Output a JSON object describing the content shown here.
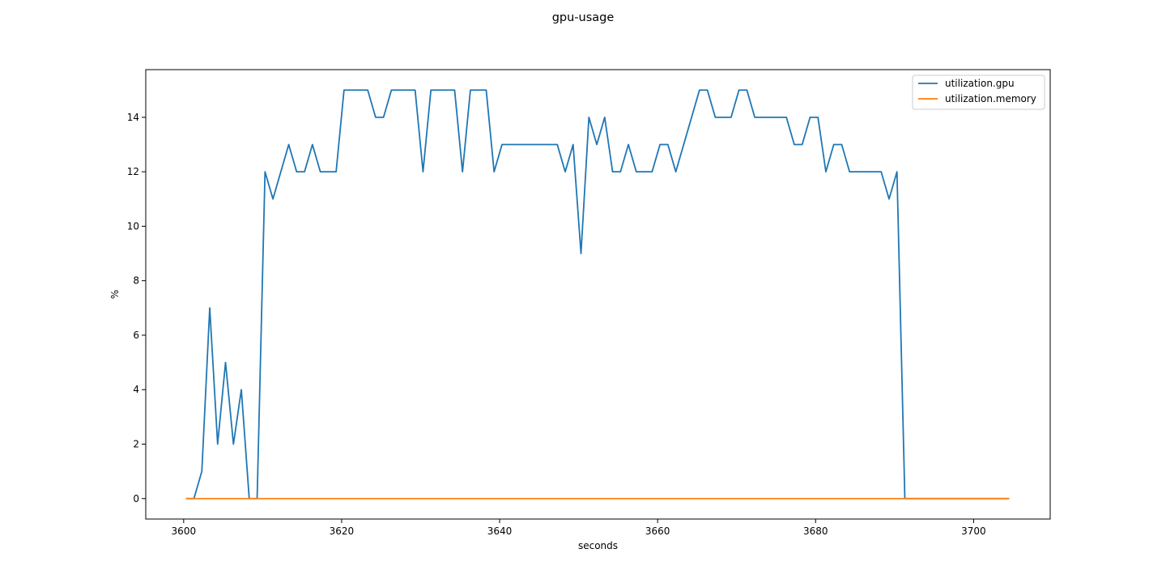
{
  "chart_data": {
    "type": "line",
    "title": "gpu-usage",
    "xlabel": "seconds",
    "ylabel": "%",
    "xlim": [
      3595.2,
      3709.7
    ],
    "ylim": [
      -0.75,
      15.75
    ],
    "xticks": [
      3600,
      3620,
      3640,
      3660,
      3680,
      3700
    ],
    "yticks": [
      0,
      2,
      4,
      6,
      8,
      10,
      12,
      14
    ],
    "grid": false,
    "legend_position": "top-right",
    "series": [
      {
        "name": "utilization.gpu",
        "color": "#1f77b4",
        "x": [
          3600.3,
          3601.3,
          3602.3,
          3603.3,
          3604.3,
          3605.3,
          3606.3,
          3607.3,
          3608.3,
          3609.3,
          3610.3,
          3611.3,
          3612.3,
          3613.3,
          3614.3,
          3615.3,
          3616.3,
          3617.3,
          3618.3,
          3619.3,
          3620.3,
          3621.3,
          3622.3,
          3623.3,
          3624.3,
          3625.3,
          3626.3,
          3627.3,
          3628.3,
          3629.3,
          3630.3,
          3631.3,
          3632.3,
          3633.3,
          3634.3,
          3635.3,
          3636.3,
          3637.3,
          3638.3,
          3639.3,
          3640.3,
          3641.3,
          3642.3,
          3643.3,
          3644.3,
          3645.3,
          3646.3,
          3647.3,
          3648.3,
          3649.3,
          3650.3,
          3651.3,
          3652.3,
          3653.3,
          3654.3,
          3655.3,
          3656.3,
          3657.3,
          3658.3,
          3659.3,
          3660.3,
          3661.3,
          3662.3,
          3663.3,
          3664.3,
          3665.3,
          3666.3,
          3667.3,
          3668.3,
          3669.3,
          3670.3,
          3671.3,
          3672.3,
          3673.3,
          3674.3,
          3675.3,
          3676.3,
          3677.3,
          3678.3,
          3679.3,
          3680.3,
          3681.3,
          3682.3,
          3683.3,
          3684.3,
          3685.3,
          3686.3,
          3687.3,
          3688.3,
          3689.3,
          3690.3,
          3691.3,
          3692.3,
          3693.3,
          3694.3,
          3695.3,
          3696.3,
          3697.3,
          3698.3,
          3699.3,
          3700.3,
          3701.3,
          3702.3,
          3703.3,
          3704.5
        ],
        "values": [
          0,
          0,
          1,
          7,
          2,
          5,
          2,
          4,
          0,
          0,
          12,
          11,
          12,
          13,
          12,
          12,
          13,
          12,
          12,
          12,
          15,
          15,
          15,
          15,
          14,
          14,
          15,
          15,
          15,
          15,
          12,
          15,
          15,
          15,
          15,
          12,
          15,
          15,
          15,
          12,
          13,
          13,
          13,
          13,
          13,
          13,
          13,
          13,
          12,
          13,
          9,
          14,
          13,
          14,
          12,
          12,
          13,
          12,
          12,
          12,
          13,
          13,
          12,
          13,
          14,
          15,
          15,
          14,
          14,
          14,
          15,
          15,
          14,
          14,
          14,
          14,
          14,
          13,
          13,
          14,
          14,
          12,
          13,
          13,
          12,
          12,
          12,
          12,
          12,
          11,
          12,
          0,
          0,
          0,
          0,
          0,
          0,
          0,
          0,
          0,
          0,
          0,
          0,
          0,
          0
        ]
      },
      {
        "name": "utilization.memory",
        "color": "#ff7f0e",
        "x": [
          3600.3,
          3704.5
        ],
        "values": [
          0,
          0
        ]
      }
    ]
  }
}
